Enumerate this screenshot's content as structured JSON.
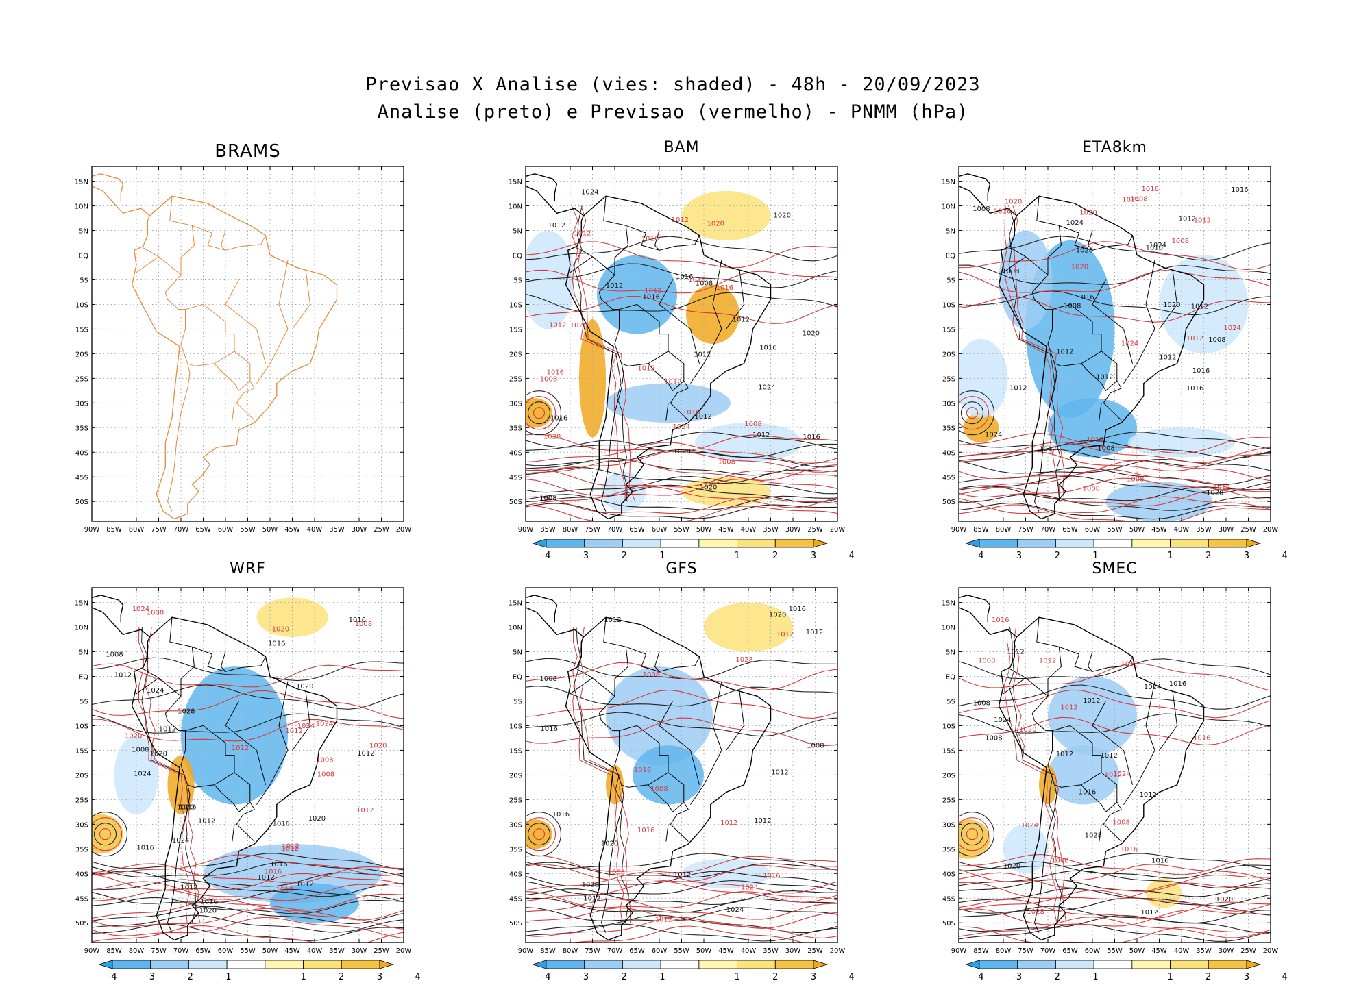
{
  "header": {
    "title_line1": "Previsao X Analise (vies: shaded) - 48h - 20/09/2023",
    "title_line2": "Analise (preto) e Previsao (vermelho) - PNMM (hPa)"
  },
  "axes": {
    "lat_labels": [
      "15N",
      "10N",
      "5N",
      "EQ",
      "5S",
      "10S",
      "15S",
      "20S",
      "25S",
      "30S",
      "35S",
      "40S",
      "45S",
      "50S"
    ],
    "lon_labels": [
      "90W",
      "85W",
      "80W",
      "75W",
      "70W",
      "65W",
      "60W",
      "55W",
      "50W",
      "45W",
      "40W",
      "35W",
      "30W",
      "25W",
      "20W"
    ]
  },
  "colorbar": {
    "labels": [
      "-4",
      "-3",
      "-2",
      "-1",
      "1",
      "2",
      "3",
      "4"
    ],
    "colors": [
      "#2f9fe8",
      "#5fb6ee",
      "#9ccdf4",
      "#cbe8fb",
      "#ffffff",
      "#fff6b0",
      "#fbe27a",
      "#f5c343",
      "#eea81f"
    ]
  },
  "panels": [
    {
      "name": "BRAMS",
      "has_colorbar": false,
      "contours_black": [],
      "contours_red": []
    },
    {
      "name": "BAM",
      "has_colorbar": true,
      "contours_black": [
        "1008",
        "1012",
        "1012",
        "1012",
        "1016",
        "1012",
        "1008",
        "1012",
        "1016",
        "1012",
        "1020",
        "1016",
        "1024",
        "1028",
        "1024",
        "1020",
        "1016",
        "1020",
        "1016"
      ],
      "contours_red": [
        "1008",
        "1012",
        "1012",
        "1008",
        "1008",
        "1012",
        "1012",
        "1012",
        "1016",
        "1012",
        "1016",
        "1016",
        "1020",
        "1024",
        "1020",
        "1028",
        "1016",
        "1016"
      ]
    },
    {
      "name": "ETA8km",
      "has_colorbar": true,
      "contours_black": [
        "1008",
        "1012",
        "1012",
        "1012",
        "1008",
        "1008",
        "1008",
        "1012",
        "1012",
        "1012",
        "1012",
        "1016",
        "1016",
        "1024",
        "1020",
        "1016",
        "1008",
        "1016",
        "1024",
        "1028",
        "1024",
        "1020",
        "1016"
      ],
      "contours_red": [
        "1008",
        "1012",
        "1012",
        "1008",
        "1012",
        "1008",
        "1008",
        "1012",
        "1016",
        "1016",
        "1020",
        "1020",
        "1024",
        "1020",
        "1024",
        "1024"
      ]
    },
    {
      "name": "WRF",
      "has_colorbar": true,
      "contours_black": [
        "1008",
        "1012",
        "1012",
        "1012",
        "1012",
        "1016",
        "1008",
        "1020",
        "1016",
        "1012",
        "1020",
        "1016",
        "1016",
        "1012",
        "1016",
        "1012",
        "1024",
        "1016",
        "1020",
        "1024",
        "1020",
        "1028",
        "1024",
        "1020",
        "1016"
      ],
      "contours_red": [
        "1012",
        "1008",
        "1012",
        "1012",
        "1008",
        "1012",
        "1016",
        "1012",
        "1020",
        "1024",
        "1020",
        "1024",
        "1020",
        "1024",
        "1008",
        "1008",
        "1016"
      ]
    },
    {
      "name": "GFS",
      "has_colorbar": true,
      "contours_black": [
        "1008",
        "1012",
        "1012",
        "1012",
        "1008",
        "1012",
        "1012",
        "1016",
        "1016",
        "1020",
        "1024",
        "1028",
        "1020",
        "1016",
        "1012"
      ],
      "contours_red": [
        "1008",
        "1008",
        "1012",
        "1012",
        "1016",
        "1016",
        "1012",
        "1016",
        "1024",
        "1028",
        "1008"
      ]
    },
    {
      "name": "SMEC",
      "has_colorbar": true,
      "contours_black": [
        "1008",
        "1012",
        "1012",
        "1012",
        "1008",
        "1012",
        "1012",
        "1016",
        "1016",
        "1020",
        "1024",
        "1028",
        "1024",
        "1020",
        "1016",
        "1012"
      ],
      "contours_red": [
        "1008",
        "1012",
        "1012",
        "1012",
        "1008",
        "1016",
        "1016",
        "1012",
        "1024",
        "1020",
        "1024",
        "1028",
        "1016",
        "1008"
      ]
    }
  ]
}
